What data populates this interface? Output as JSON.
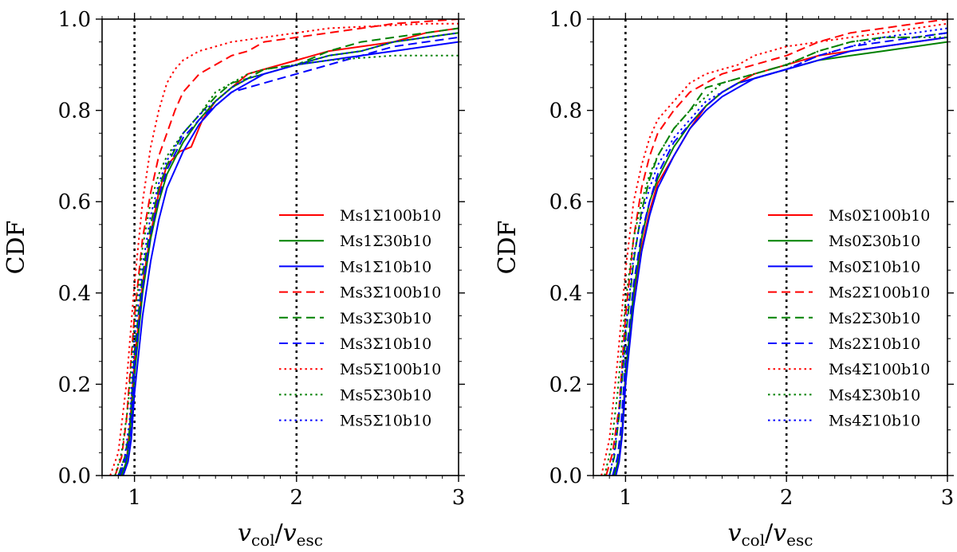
{
  "chart_data": [
    {
      "type": "line",
      "xlabel": "v_col/v_esc",
      "ylabel": "CDF",
      "xlim": [
        0.8,
        3
      ],
      "ylim": [
        0,
        1
      ],
      "xticks": [
        "1",
        "2",
        "3"
      ],
      "yticks": [
        "0.0",
        "0.2",
        "0.4",
        "0.6",
        "0.8",
        "1.0"
      ],
      "vlines": [
        1,
        2
      ],
      "legend_position": "lower-right",
      "series": [
        {
          "name": "Ms1Σ100b10",
          "color": "#ff0000",
          "style": "solid",
          "x": [
            0.92,
            0.95,
            0.97,
            1.0,
            1.05,
            1.1,
            1.15,
            1.2,
            1.28,
            1.35,
            1.42,
            1.5,
            1.6,
            1.7,
            1.8,
            2.0,
            2.2,
            2.4,
            2.6,
            2.8,
            3.0
          ],
          "y": [
            0.0,
            0.03,
            0.1,
            0.25,
            0.42,
            0.53,
            0.62,
            0.68,
            0.71,
            0.72,
            0.78,
            0.82,
            0.85,
            0.88,
            0.89,
            0.91,
            0.93,
            0.94,
            0.95,
            0.97,
            0.98
          ]
        },
        {
          "name": "Ms1Σ30b10",
          "color": "#008000",
          "style": "solid",
          "x": [
            0.92,
            0.95,
            0.97,
            1.0,
            1.05,
            1.1,
            1.15,
            1.2,
            1.3,
            1.4,
            1.5,
            1.6,
            1.7,
            1.8,
            2.0,
            2.2,
            2.4,
            2.6,
            2.8,
            3.0
          ],
          "y": [
            0.0,
            0.03,
            0.08,
            0.22,
            0.4,
            0.52,
            0.6,
            0.66,
            0.73,
            0.78,
            0.82,
            0.85,
            0.87,
            0.88,
            0.9,
            0.92,
            0.93,
            0.95,
            0.96,
            0.97
          ]
        },
        {
          "name": "Ms1Σ10b10",
          "color": "#0000ff",
          "style": "solid",
          "x": [
            0.93,
            0.96,
            0.98,
            1.0,
            1.05,
            1.1,
            1.15,
            1.2,
            1.3,
            1.4,
            1.5,
            1.6,
            1.7,
            1.8,
            2.0,
            2.2,
            2.4,
            2.6,
            2.8,
            3.0
          ],
          "y": [
            0.0,
            0.03,
            0.08,
            0.18,
            0.35,
            0.47,
            0.56,
            0.63,
            0.71,
            0.77,
            0.81,
            0.84,
            0.86,
            0.88,
            0.9,
            0.91,
            0.92,
            0.93,
            0.94,
            0.95
          ]
        },
        {
          "name": "Ms3Σ100b10",
          "color": "#ff0000",
          "style": "dashed",
          "x": [
            0.88,
            0.92,
            0.95,
            1.0,
            1.05,
            1.1,
            1.15,
            1.2,
            1.25,
            1.3,
            1.4,
            1.5,
            1.6,
            1.7,
            1.8,
            2.0,
            2.2,
            2.4,
            2.6,
            2.8,
            3.0
          ],
          "y": [
            0.0,
            0.04,
            0.12,
            0.35,
            0.52,
            0.62,
            0.7,
            0.75,
            0.8,
            0.84,
            0.88,
            0.9,
            0.92,
            0.93,
            0.95,
            0.96,
            0.97,
            0.98,
            0.99,
            0.995,
            1.0
          ]
        },
        {
          "name": "Ms3Σ30b10",
          "color": "#008000",
          "style": "dashed",
          "x": [
            0.9,
            0.94,
            0.97,
            1.0,
            1.05,
            1.1,
            1.15,
            1.2,
            1.3,
            1.4,
            1.5,
            1.6,
            1.7,
            1.8,
            2.0,
            2.2,
            2.4,
            2.6,
            2.8,
            3.0
          ],
          "y": [
            0.0,
            0.04,
            0.1,
            0.27,
            0.44,
            0.55,
            0.63,
            0.68,
            0.75,
            0.79,
            0.83,
            0.86,
            0.87,
            0.89,
            0.9,
            0.93,
            0.95,
            0.96,
            0.97,
            0.98
          ]
        },
        {
          "name": "Ms3Σ10b10",
          "color": "#0000ff",
          "style": "dashed",
          "x": [
            0.91,
            0.95,
            0.98,
            1.0,
            1.05,
            1.1,
            1.15,
            1.2,
            1.3,
            1.4,
            1.5,
            1.6,
            1.7,
            1.8,
            2.0,
            2.2,
            2.4,
            2.6,
            2.8,
            3.0
          ],
          "y": [
            0.0,
            0.04,
            0.1,
            0.24,
            0.41,
            0.53,
            0.61,
            0.67,
            0.74,
            0.78,
            0.81,
            0.84,
            0.85,
            0.86,
            0.88,
            0.9,
            0.92,
            0.94,
            0.95,
            0.96
          ]
        },
        {
          "name": "Ms5Σ100b10",
          "color": "#ff0000",
          "style": "dotted",
          "x": [
            0.85,
            0.9,
            0.95,
            1.0,
            1.05,
            1.1,
            1.15,
            1.2,
            1.25,
            1.3,
            1.4,
            1.5,
            1.6,
            1.8,
            2.0,
            2.2,
            2.5,
            2.8,
            3.0
          ],
          "y": [
            0.0,
            0.05,
            0.2,
            0.42,
            0.6,
            0.72,
            0.8,
            0.86,
            0.89,
            0.91,
            0.93,
            0.94,
            0.95,
            0.96,
            0.97,
            0.98,
            0.985,
            0.99,
            0.99
          ]
        },
        {
          "name": "Ms5Σ30b10",
          "color": "#008000",
          "style": "dotted",
          "x": [
            0.88,
            0.92,
            0.96,
            1.0,
            1.05,
            1.1,
            1.15,
            1.2,
            1.3,
            1.4,
            1.5,
            1.6,
            1.7,
            1.8,
            2.0,
            2.2,
            2.4,
            2.6,
            2.8,
            3.0
          ],
          "y": [
            0.0,
            0.05,
            0.15,
            0.33,
            0.5,
            0.6,
            0.66,
            0.7,
            0.75,
            0.79,
            0.84,
            0.86,
            0.88,
            0.89,
            0.9,
            0.91,
            0.915,
            0.92,
            0.92,
            0.92
          ]
        },
        {
          "name": "Ms5Σ10b10",
          "color": "#0000ff",
          "style": "dotted",
          "x": [
            0.9,
            0.94,
            0.97,
            1.0,
            1.05,
            1.1,
            1.15,
            1.2,
            1.3,
            1.4,
            1.5,
            1.6,
            1.7,
            1.8,
            2.0,
            2.2,
            2.4,
            2.6,
            2.8,
            3.0
          ],
          "y": [
            0.0,
            0.04,
            0.12,
            0.3,
            0.46,
            0.57,
            0.64,
            0.69,
            0.75,
            0.79,
            0.82,
            0.85,
            0.87,
            0.88,
            0.9,
            0.92,
            0.93,
            0.95,
            0.96,
            0.97
          ]
        }
      ]
    },
    {
      "type": "line",
      "xlabel": "v_col/v_esc",
      "ylabel": "CDF",
      "xlim": [
        0.8,
        3
      ],
      "ylim": [
        0,
        1
      ],
      "xticks": [
        "1",
        "2",
        "3"
      ],
      "yticks": [
        "0.0",
        "0.2",
        "0.4",
        "0.6",
        "0.8",
        "1.0"
      ],
      "vlines": [
        1,
        2
      ],
      "legend_position": "lower-right",
      "series": [
        {
          "name": "Ms0Σ100b10",
          "color": "#ff0000",
          "style": "solid",
          "x": [
            0.93,
            0.96,
            0.98,
            1.0,
            1.05,
            1.1,
            1.15,
            1.2,
            1.3,
            1.4,
            1.5,
            1.6,
            1.7,
            1.8,
            2.0,
            2.2,
            2.4,
            2.6,
            2.8,
            3.0
          ],
          "y": [
            0.0,
            0.04,
            0.1,
            0.22,
            0.38,
            0.5,
            0.58,
            0.64,
            0.7,
            0.76,
            0.81,
            0.84,
            0.86,
            0.88,
            0.9,
            0.92,
            0.93,
            0.94,
            0.95,
            0.96
          ]
        },
        {
          "name": "Ms0Σ30b10",
          "color": "#008000",
          "style": "solid",
          "x": [
            0.93,
            0.96,
            0.98,
            1.0,
            1.05,
            1.1,
            1.15,
            1.2,
            1.3,
            1.4,
            1.5,
            1.6,
            1.7,
            1.8,
            2.0,
            2.2,
            2.4,
            2.6,
            2.8,
            3.0
          ],
          "y": [
            0.0,
            0.04,
            0.1,
            0.22,
            0.4,
            0.52,
            0.6,
            0.65,
            0.72,
            0.77,
            0.81,
            0.84,
            0.86,
            0.87,
            0.89,
            0.91,
            0.92,
            0.93,
            0.94,
            0.95
          ]
        },
        {
          "name": "Ms0Σ10b10",
          "color": "#0000ff",
          "style": "solid",
          "x": [
            0.94,
            0.96,
            0.98,
            1.0,
            1.05,
            1.1,
            1.15,
            1.2,
            1.3,
            1.4,
            1.5,
            1.6,
            1.7,
            1.8,
            2.0,
            2.2,
            2.4,
            2.6,
            2.8,
            3.0
          ],
          "y": [
            0.0,
            0.03,
            0.09,
            0.2,
            0.37,
            0.49,
            0.57,
            0.63,
            0.7,
            0.76,
            0.8,
            0.83,
            0.85,
            0.87,
            0.89,
            0.91,
            0.93,
            0.94,
            0.95,
            0.96
          ]
        },
        {
          "name": "Ms2Σ100b10",
          "color": "#ff0000",
          "style": "dashed",
          "x": [
            0.88,
            0.92,
            0.96,
            1.0,
            1.05,
            1.1,
            1.15,
            1.2,
            1.3,
            1.4,
            1.5,
            1.6,
            1.7,
            1.8,
            2.0,
            2.2,
            2.4,
            2.6,
            2.8,
            3.0
          ],
          "y": [
            0.0,
            0.05,
            0.15,
            0.35,
            0.52,
            0.63,
            0.7,
            0.75,
            0.8,
            0.84,
            0.86,
            0.88,
            0.89,
            0.9,
            0.92,
            0.95,
            0.97,
            0.98,
            0.99,
            1.0
          ]
        },
        {
          "name": "Ms2Σ30b10",
          "color": "#008000",
          "style": "dashed",
          "x": [
            0.9,
            0.93,
            0.96,
            1.0,
            1.05,
            1.1,
            1.15,
            1.2,
            1.3,
            1.4,
            1.5,
            1.6,
            1.7,
            1.8,
            2.0,
            2.2,
            2.4,
            2.6,
            2.8,
            3.0
          ],
          "y": [
            0.0,
            0.04,
            0.13,
            0.3,
            0.47,
            0.58,
            0.65,
            0.7,
            0.76,
            0.8,
            0.85,
            0.86,
            0.87,
            0.88,
            0.9,
            0.93,
            0.95,
            0.96,
            0.96,
            0.97
          ]
        },
        {
          "name": "Ms2Σ10b10",
          "color": "#0000ff",
          "style": "dashed",
          "x": [
            0.92,
            0.95,
            0.97,
            1.0,
            1.05,
            1.1,
            1.15,
            1.2,
            1.3,
            1.4,
            1.5,
            1.6,
            1.7,
            1.8,
            2.0,
            2.2,
            2.4,
            2.6,
            2.8,
            3.0
          ],
          "y": [
            0.0,
            0.04,
            0.1,
            0.25,
            0.42,
            0.53,
            0.6,
            0.66,
            0.73,
            0.77,
            0.81,
            0.84,
            0.86,
            0.87,
            0.89,
            0.92,
            0.94,
            0.95,
            0.96,
            0.97
          ]
        },
        {
          "name": "Ms4Σ100b10",
          "color": "#ff0000",
          "style": "dotted",
          "x": [
            0.85,
            0.9,
            0.95,
            1.0,
            1.05,
            1.1,
            1.15,
            1.2,
            1.3,
            1.4,
            1.5,
            1.6,
            1.7,
            1.8,
            2.0,
            2.2,
            2.4,
            2.6,
            2.8,
            3.0
          ],
          "y": [
            0.0,
            0.08,
            0.25,
            0.45,
            0.6,
            0.68,
            0.74,
            0.78,
            0.82,
            0.86,
            0.88,
            0.89,
            0.9,
            0.92,
            0.94,
            0.95,
            0.96,
            0.97,
            0.98,
            0.99
          ]
        },
        {
          "name": "Ms4Σ30b10",
          "color": "#008000",
          "style": "dotted",
          "x": [
            0.87,
            0.91,
            0.95,
            1.0,
            1.05,
            1.1,
            1.15,
            1.2,
            1.3,
            1.4,
            1.5,
            1.6,
            1.7,
            1.8,
            2.0,
            2.2,
            2.4,
            2.6,
            2.8,
            3.0
          ],
          "y": [
            0.0,
            0.06,
            0.18,
            0.38,
            0.52,
            0.6,
            0.66,
            0.7,
            0.76,
            0.8,
            0.83,
            0.86,
            0.87,
            0.88,
            0.9,
            0.93,
            0.95,
            0.96,
            0.96,
            0.96
          ]
        },
        {
          "name": "Ms4Σ10b10",
          "color": "#0000ff",
          "style": "dotted",
          "x": [
            0.9,
            0.93,
            0.96,
            1.0,
            1.05,
            1.1,
            1.15,
            1.2,
            1.3,
            1.4,
            1.5,
            1.6,
            1.7,
            1.8,
            2.0,
            2.2,
            2.4,
            2.6,
            2.8,
            3.0
          ],
          "y": [
            0.0,
            0.05,
            0.14,
            0.32,
            0.48,
            0.57,
            0.63,
            0.68,
            0.74,
            0.78,
            0.82,
            0.84,
            0.86,
            0.87,
            0.89,
            0.92,
            0.94,
            0.96,
            0.97,
            0.98
          ]
        }
      ]
    }
  ]
}
